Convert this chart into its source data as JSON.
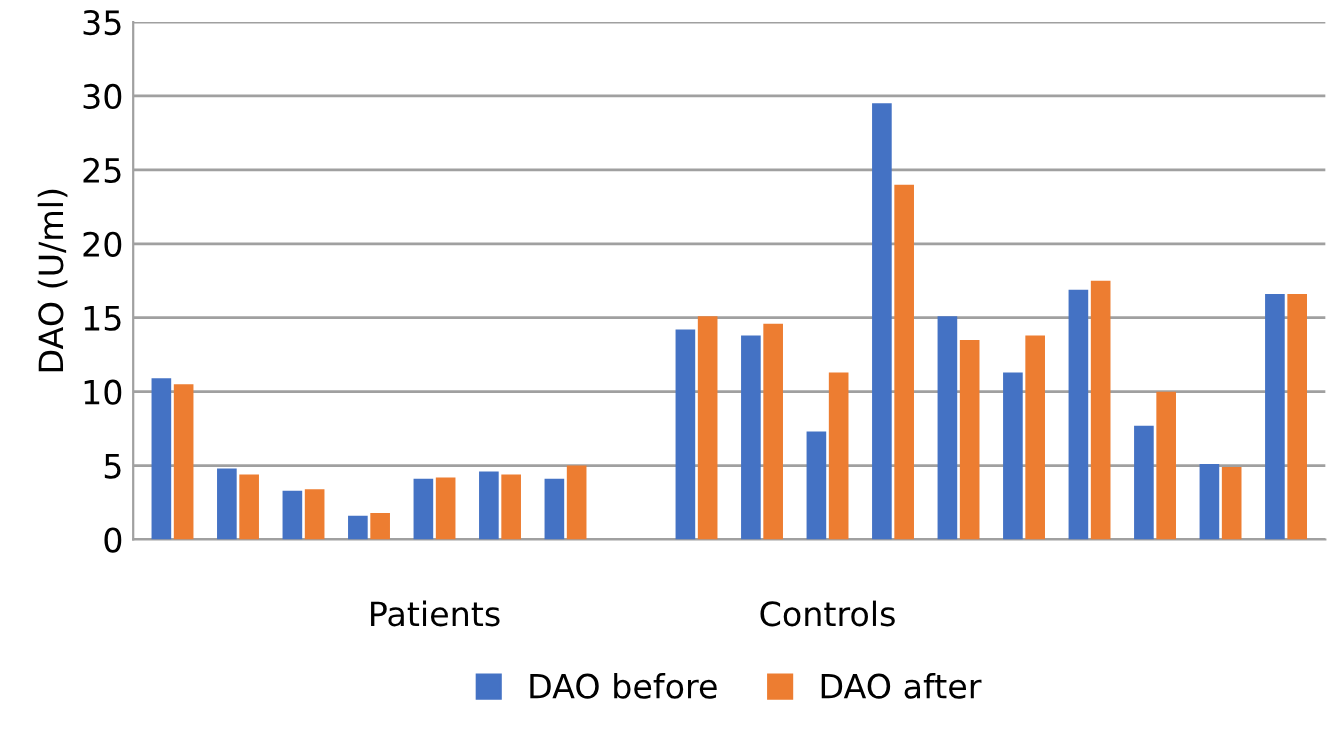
{
  "chart_data": {
    "type": "bar",
    "ylabel": "DAO (U/ml)",
    "categories": [
      null,
      null,
      null,
      null,
      "Patients",
      null,
      null,
      null,
      null,
      null,
      "Controls",
      null,
      null,
      null,
      null,
      null,
      null,
      null
    ],
    "series": [
      {
        "name": "DAO before",
        "color": "#4472c4",
        "values": [
          10.9,
          4.8,
          3.3,
          1.6,
          4.1,
          4.6,
          4.1,
          null,
          14.2,
          13.8,
          7.3,
          29.5,
          15.1,
          11.3,
          16.9,
          7.7,
          5.1,
          16.6
        ]
      },
      {
        "name": "DAO after",
        "color": "#ed7d31",
        "values": [
          10.5,
          4.4,
          3.4,
          1.8,
          4.2,
          4.4,
          5.0,
          null,
          15.1,
          14.6,
          11.3,
          24.0,
          13.5,
          13.8,
          17.5,
          10.0,
          4.9,
          16.6
        ]
      }
    ],
    "ylim": [
      0,
      35
    ],
    "yticks": [
      0,
      5,
      10,
      15,
      20,
      25,
      30,
      35
    ],
    "grid": "y",
    "legend": "bottom"
  }
}
